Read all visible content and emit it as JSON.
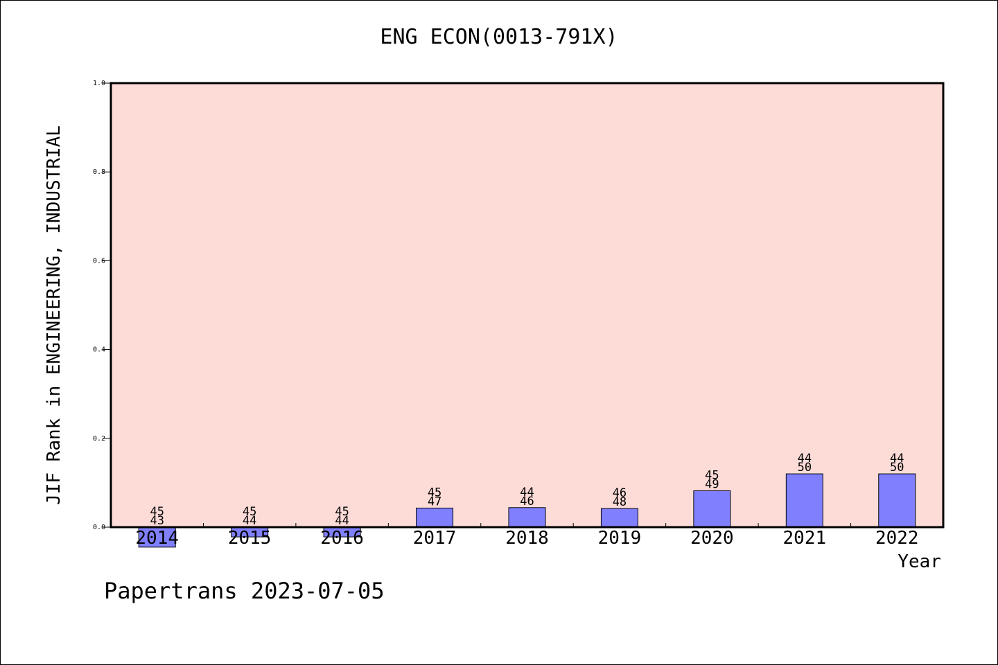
{
  "chart_data": {
    "type": "bar",
    "title": "ENG ECON(0013-791X)",
    "xlabel": "Year",
    "ylabel": "JIF Rank in ENGINEERING, INDUSTRIAL",
    "ylim": [
      0.0,
      1.0
    ],
    "yticks": [
      "0.0",
      "0.2",
      "0.4",
      "0.6",
      "0.8",
      "1.0"
    ],
    "categories": [
      "2014",
      "2015",
      "2016",
      "2017",
      "2018",
      "2019",
      "2020",
      "2021",
      "2022"
    ],
    "values": [
      -0.045,
      -0.022,
      -0.022,
      0.043,
      0.044,
      0.042,
      0.082,
      0.12,
      0.12
    ],
    "annotations": [
      {
        "top": "45",
        "bottom": "43"
      },
      {
        "top": "45",
        "bottom": "44"
      },
      {
        "top": "45",
        "bottom": "44"
      },
      {
        "top": "45",
        "bottom": "47"
      },
      {
        "top": "44",
        "bottom": "46"
      },
      {
        "top": "46",
        "bottom": "48"
      },
      {
        "top": "45",
        "bottom": "49"
      },
      {
        "top": "44",
        "bottom": "50"
      },
      {
        "top": "44",
        "bottom": "50"
      }
    ],
    "grid": false,
    "colors": {
      "plot_background": "#fddcd8",
      "bar": "#8080ff",
      "axis": "#000000"
    }
  },
  "footer": "Papertrans 2023-07-05"
}
